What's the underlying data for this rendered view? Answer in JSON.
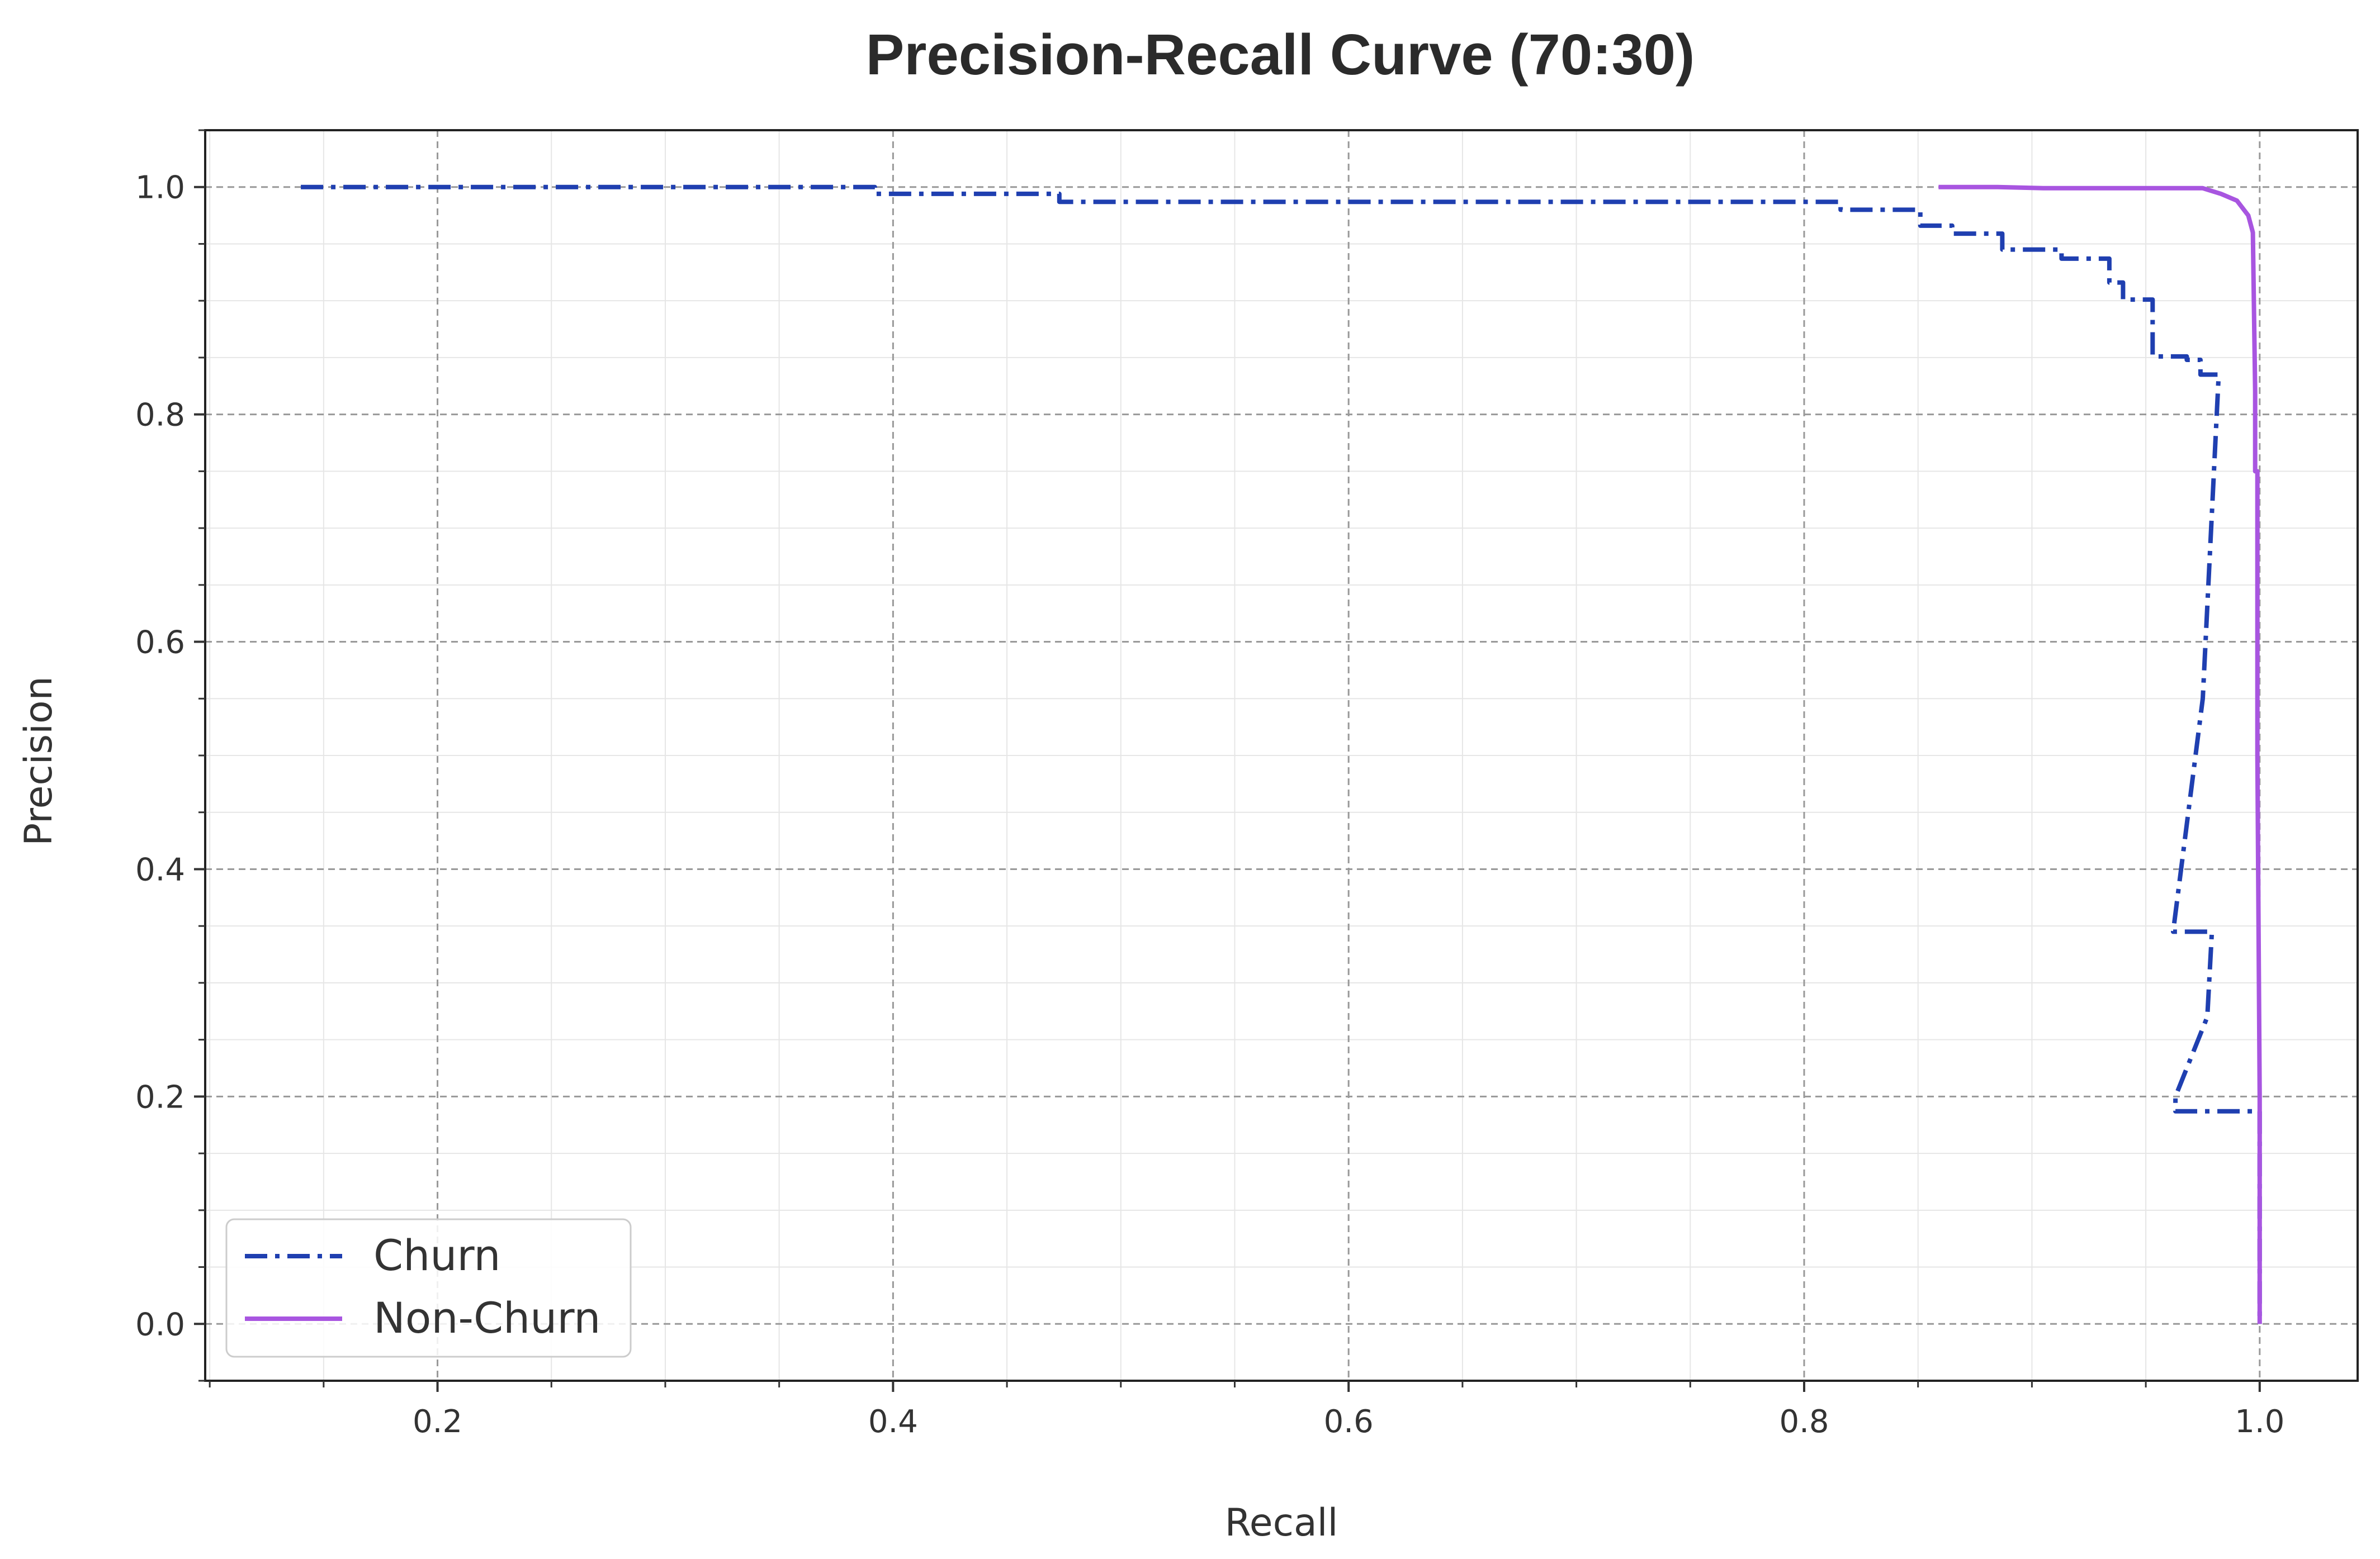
{
  "chart_data": {
    "type": "line",
    "title": "Precision-Recall Curve (70:30)",
    "xlabel": "Recall",
    "ylabel": "Precision",
    "xlim": [
      0.098,
      1.043
    ],
    "ylim": [
      -0.05,
      1.05
    ],
    "x_ticks": [
      0.2,
      0.4,
      0.6,
      0.8,
      1.0
    ],
    "x_tick_labels": [
      "0.2",
      "0.4",
      "0.6",
      "0.8",
      "1.0"
    ],
    "y_ticks": [
      0.0,
      0.2,
      0.4,
      0.6,
      0.8,
      1.0
    ],
    "y_tick_labels": [
      "0.0",
      "0.2",
      "0.4",
      "0.6",
      "0.8",
      "1.0"
    ],
    "x_minor_step": 0.05,
    "y_minor_step": 0.05,
    "grid": true,
    "legend_position": "lower-left",
    "series": [
      {
        "name": "Churn",
        "color": "#1f3fb0",
        "style": "dashdot",
        "x": [
          0.14,
          0.392,
          0.392,
          0.473,
          0.473,
          0.816,
          0.816,
          0.851,
          0.851,
          0.865,
          0.865,
          0.887,
          0.887,
          0.913,
          0.913,
          0.934,
          0.934,
          0.94,
          0.94,
          0.953,
          0.953,
          0.968,
          0.968,
          0.974,
          0.974,
          0.982,
          0.975,
          0.962,
          0.962,
          0.979,
          0.977,
          0.963,
          0.963,
          1.0,
          1.0
        ],
        "y": [
          1.0,
          1.0,
          0.994,
          0.994,
          0.987,
          0.987,
          0.98,
          0.98,
          0.966,
          0.966,
          0.959,
          0.959,
          0.945,
          0.945,
          0.937,
          0.937,
          0.916,
          0.916,
          0.901,
          0.901,
          0.851,
          0.851,
          0.848,
          0.848,
          0.835,
          0.835,
          0.55,
          0.345,
          0.345,
          0.345,
          0.27,
          0.2,
          0.187,
          0.187,
          0.0
        ]
      },
      {
        "name": "Non-Churn",
        "color": "#a855e0",
        "style": "solid",
        "x": [
          0.859,
          0.885,
          0.905,
          0.975,
          0.983,
          0.99,
          0.995,
          0.997,
          0.998,
          0.998,
          0.999,
          0.999,
          1.0,
          1.0
        ],
        "y": [
          1.0,
          1.0,
          0.999,
          0.999,
          0.994,
          0.988,
          0.975,
          0.96,
          0.82,
          0.75,
          0.75,
          0.5,
          0.2,
          0.0
        ]
      }
    ]
  }
}
